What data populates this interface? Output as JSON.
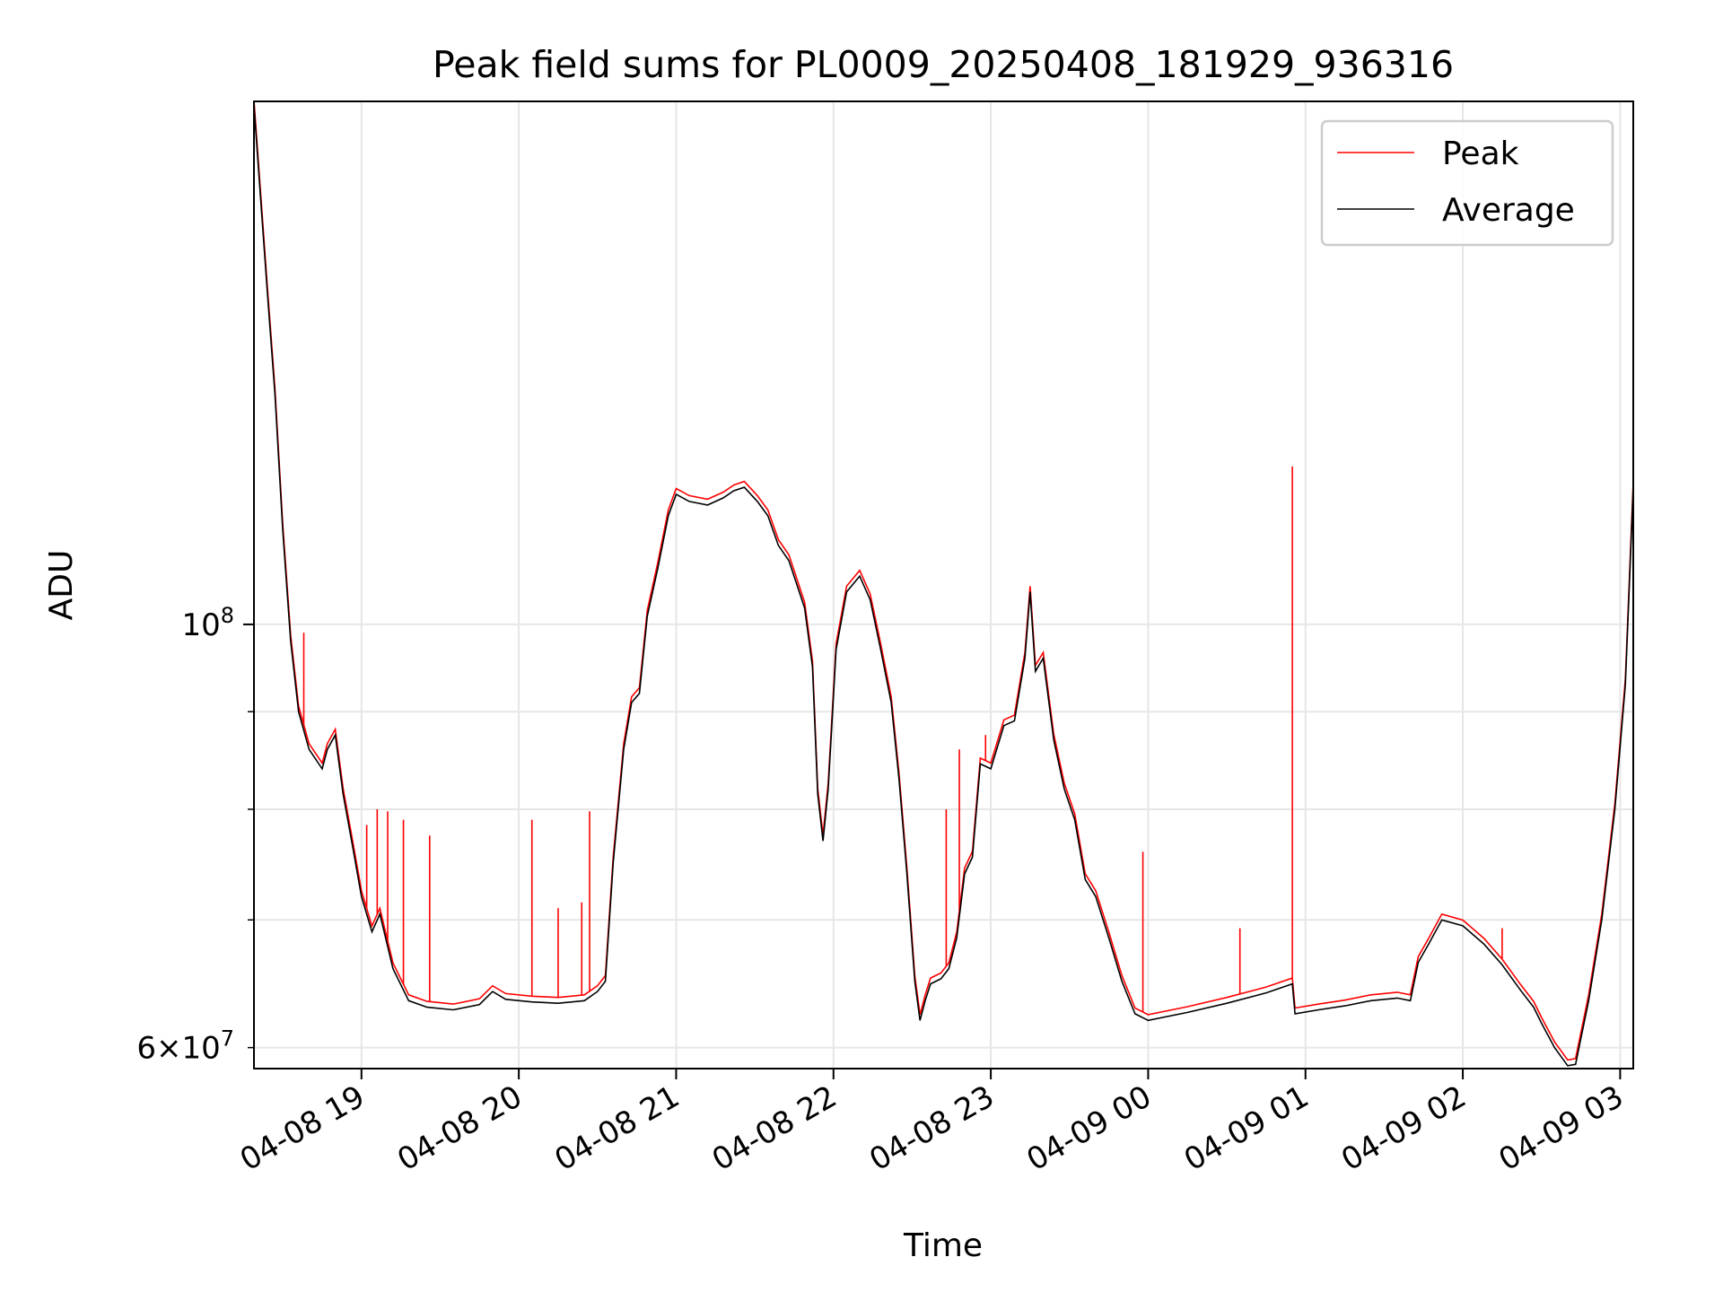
{
  "chart_data": {
    "type": "line",
    "title": "Peak field sums for PL0009_20250408_181929_936316",
    "xlabel": "Time",
    "ylabel": "ADU",
    "y_scale": "log",
    "ylim": [
      58500000,
      188000000
    ],
    "xlim": [
      "2025-04-08 18:19",
      "2025-04-09 03:05"
    ],
    "grid": true,
    "legend": "upper-right",
    "x_ticks": [
      {
        "t": "2025-04-08 19:00",
        "label": "04-08 19"
      },
      {
        "t": "2025-04-08 20:00",
        "label": "04-08 20"
      },
      {
        "t": "2025-04-08 21:00",
        "label": "04-08 21"
      },
      {
        "t": "2025-04-08 22:00",
        "label": "04-08 22"
      },
      {
        "t": "2025-04-08 23:00",
        "label": "04-08 23"
      },
      {
        "t": "2025-04-09 00:00",
        "label": "04-09 00"
      },
      {
        "t": "2025-04-09 01:00",
        "label": "04-09 01"
      },
      {
        "t": "2025-04-09 02:00",
        "label": "04-09 02"
      },
      {
        "t": "2025-04-09 03:00",
        "label": "04-09 03"
      }
    ],
    "y_major_ticks": [
      {
        "v": 100000000,
        "label_base": "10",
        "label_exp": "8"
      }
    ],
    "y_minor_ticks": [
      {
        "v": 60000000,
        "label_coef": "6",
        "label_base": "10",
        "label_exp": "7"
      },
      {
        "v": 70000000
      },
      {
        "v": 80000000
      },
      {
        "v": 90000000
      }
    ],
    "series": [
      {
        "name": "Average",
        "color": "#000000",
        "points": [
          [
            "2025-04-08 18:19",
            187000000
          ],
          [
            "2025-04-08 18:24",
            150000000
          ],
          [
            "2025-04-08 18:27",
            132000000
          ],
          [
            "2025-04-08 18:30",
            112000000
          ],
          [
            "2025-04-08 18:33",
            98000000
          ],
          [
            "2025-04-08 18:36",
            90000000
          ],
          [
            "2025-04-08 18:40",
            86000000
          ],
          [
            "2025-04-08 18:45",
            84000000
          ],
          [
            "2025-04-08 18:47",
            86000000
          ],
          [
            "2025-04-08 18:50",
            87500000
          ],
          [
            "2025-04-08 18:53",
            81500000
          ],
          [
            "2025-04-08 18:57",
            76000000
          ],
          [
            "2025-04-08 19:00",
            72000000
          ],
          [
            "2025-04-08 19:04",
            69000000
          ],
          [
            "2025-04-08 19:07",
            70500000
          ],
          [
            "2025-04-08 19:12",
            66000000
          ],
          [
            "2025-04-08 19:18",
            63500000
          ],
          [
            "2025-04-08 19:25",
            63000000
          ],
          [
            "2025-04-08 19:35",
            62800000
          ],
          [
            "2025-04-08 19:45",
            63200000
          ],
          [
            "2025-04-08 19:50",
            64200000
          ],
          [
            "2025-04-08 19:55",
            63600000
          ],
          [
            "2025-04-08 20:05",
            63400000
          ],
          [
            "2025-04-08 20:15",
            63300000
          ],
          [
            "2025-04-08 20:25",
            63500000
          ],
          [
            "2025-04-08 20:30",
            64200000
          ],
          [
            "2025-04-08 20:33",
            65000000
          ],
          [
            "2025-04-08 20:36",
            75000000
          ],
          [
            "2025-04-08 20:40",
            86000000
          ],
          [
            "2025-04-08 20:43",
            91000000
          ],
          [
            "2025-04-08 20:46",
            92000000
          ],
          [
            "2025-04-08 20:49",
            101000000
          ],
          [
            "2025-04-08 20:53",
            107000000
          ],
          [
            "2025-04-08 20:57",
            114000000
          ],
          [
            "2025-04-08 21:00",
            117000000
          ],
          [
            "2025-04-08 21:05",
            116000000
          ],
          [
            "2025-04-08 21:12",
            115500000
          ],
          [
            "2025-04-08 21:18",
            116500000
          ],
          [
            "2025-04-08 21:22",
            117500000
          ],
          [
            "2025-04-08 21:26",
            118000000
          ],
          [
            "2025-04-08 21:31",
            116000000
          ],
          [
            "2025-04-08 21:35",
            114000000
          ],
          [
            "2025-04-08 21:39",
            110000000
          ],
          [
            "2025-04-08 21:43",
            108000000
          ],
          [
            "2025-04-08 21:49",
            102000000
          ],
          [
            "2025-04-08 21:52",
            95000000
          ],
          [
            "2025-04-08 21:54",
            81500000
          ],
          [
            "2025-04-08 21:56",
            77000000
          ],
          [
            "2025-04-08 21:58",
            82000000
          ],
          [
            "2025-04-08 22:01",
            97000000
          ],
          [
            "2025-04-08 22:05",
            104000000
          ],
          [
            "2025-04-08 22:10",
            106000000
          ],
          [
            "2025-04-08 22:14",
            103000000
          ],
          [
            "2025-04-08 22:18",
            97000000
          ],
          [
            "2025-04-08 22:22",
            91000000
          ],
          [
            "2025-04-08 22:25",
            83000000
          ],
          [
            "2025-04-08 22:28",
            74000000
          ],
          [
            "2025-04-08 22:31",
            65000000
          ],
          [
            "2025-04-08 22:33",
            62000000
          ],
          [
            "2025-04-08 22:35",
            63500000
          ],
          [
            "2025-04-08 22:37",
            64800000
          ],
          [
            "2025-04-08 22:41",
            65200000
          ],
          [
            "2025-04-08 22:44",
            66000000
          ],
          [
            "2025-04-08 22:47",
            68500000
          ],
          [
            "2025-04-08 22:50",
            74000000
          ],
          [
            "2025-04-08 22:53",
            75500000
          ],
          [
            "2025-04-08 22:56",
            84500000
          ],
          [
            "2025-04-08 23:00",
            84000000
          ],
          [
            "2025-04-08 23:05",
            88500000
          ],
          [
            "2025-04-08 23:09",
            89000000
          ],
          [
            "2025-04-08 23:13",
            96000000
          ],
          [
            "2025-04-08 23:15",
            104000000
          ],
          [
            "2025-04-08 23:17",
            94500000
          ],
          [
            "2025-04-08 23:20",
            96000000
          ],
          [
            "2025-04-08 23:24",
            87000000
          ],
          [
            "2025-04-08 23:28",
            82000000
          ],
          [
            "2025-04-08 23:32",
            79000000
          ],
          [
            "2025-04-08 23:36",
            73500000
          ],
          [
            "2025-04-08 23:40",
            72000000
          ],
          [
            "2025-04-08 23:45",
            68500000
          ],
          [
            "2025-04-08 23:50",
            65000000
          ],
          [
            "2025-04-08 23:55",
            62500000
          ],
          [
            "2025-04-09 00:00",
            62000000
          ],
          [
            "2025-04-09 00:15",
            62600000
          ],
          [
            "2025-04-09 00:30",
            63300000
          ],
          [
            "2025-04-09 00:45",
            64100000
          ],
          [
            "2025-04-09 00:55",
            64800000
          ],
          [
            "2025-04-09 00:56",
            62500000
          ],
          [
            "2025-04-09 01:05",
            62800000
          ],
          [
            "2025-04-09 01:15",
            63100000
          ],
          [
            "2025-04-09 01:25",
            63500000
          ],
          [
            "2025-04-09 01:35",
            63700000
          ],
          [
            "2025-04-09 01:40",
            63500000
          ],
          [
            "2025-04-09 01:43",
            66500000
          ],
          [
            "2025-04-09 01:47",
            68000000
          ],
          [
            "2025-04-09 01:52",
            70000000
          ],
          [
            "2025-04-09 02:00",
            69500000
          ],
          [
            "2025-04-09 02:08",
            68000000
          ],
          [
            "2025-04-09 02:15",
            66300000
          ],
          [
            "2025-04-09 02:22",
            64300000
          ],
          [
            "2025-04-09 02:27",
            63000000
          ],
          [
            "2025-04-09 02:30",
            61800000
          ],
          [
            "2025-04-09 02:35",
            60000000
          ],
          [
            "2025-04-09 02:40",
            58700000
          ],
          [
            "2025-04-09 02:43",
            58800000
          ],
          [
            "2025-04-09 02:48",
            63500000
          ],
          [
            "2025-04-09 02:53",
            70000000
          ],
          [
            "2025-04-09 02:58",
            80000000
          ],
          [
            "2025-04-09 03:02",
            93000000
          ],
          [
            "2025-04-09 03:05",
            118000000
          ]
        ]
      },
      {
        "name": "Peak",
        "color": "#ff0000",
        "offset_ratio": 1.007,
        "spikes": [
          [
            "2025-04-08 18:38",
            99000000
          ],
          [
            "2025-04-08 19:02",
            78500000
          ],
          [
            "2025-04-08 19:06",
            80000000
          ],
          [
            "2025-04-08 19:10",
            79800000
          ],
          [
            "2025-04-08 19:16",
            79000000
          ],
          [
            "2025-04-08 19:26",
            77500000
          ],
          [
            "2025-04-08 20:05",
            79000000
          ],
          [
            "2025-04-08 20:15",
            71000000
          ],
          [
            "2025-04-08 20:24",
            71500000
          ],
          [
            "2025-04-08 20:27",
            79800000
          ],
          [
            "2025-04-08 22:43",
            80000000
          ],
          [
            "2025-04-08 22:48",
            86000000
          ],
          [
            "2025-04-08 22:58",
            87500000
          ],
          [
            "2025-04-08 23:58",
            76000000
          ],
          [
            "2025-04-09 00:35",
            69300000
          ],
          [
            "2025-04-09 00:55",
            121000000
          ],
          [
            "2025-04-09 02:15",
            69300000
          ]
        ]
      }
    ]
  }
}
